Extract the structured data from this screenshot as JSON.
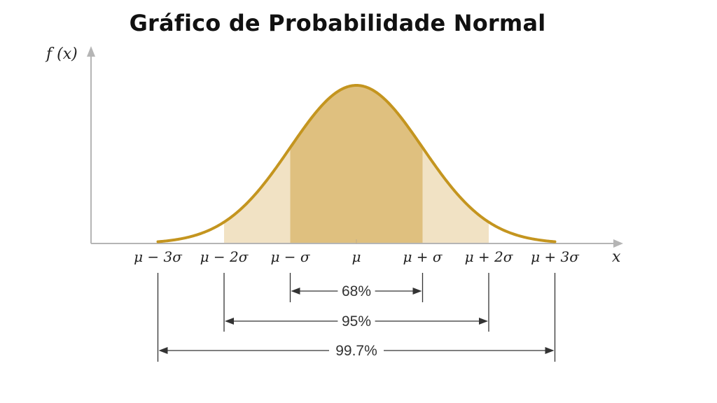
{
  "title": "Gráfico de Probabilidade Normal",
  "chart_data": {
    "type": "area",
    "distribution": "normal",
    "ylabel": "f (x)",
    "xlabel": "x",
    "x_ticks": [
      {
        "z": -3,
        "label": "μ − 3σ"
      },
      {
        "z": -2,
        "label": "μ − 2σ"
      },
      {
        "z": -1,
        "label": "μ − σ"
      },
      {
        "z": 0,
        "label": "μ"
      },
      {
        "z": 1,
        "label": "μ + σ"
      },
      {
        "z": 2,
        "label": "μ + 2σ"
      },
      {
        "z": 3,
        "label": "μ + 3σ"
      }
    ],
    "xlim": [
      -3,
      3
    ],
    "intervals": [
      {
        "from": -1,
        "to": 1,
        "label": "68%"
      },
      {
        "from": -2,
        "to": 2,
        "label": "95%"
      },
      {
        "from": -3,
        "to": 3,
        "label": "99.7%"
      }
    ],
    "shaded_regions": [
      {
        "from": -2,
        "to": 2,
        "color": "#f1e2c4"
      },
      {
        "from": -1,
        "to": 1,
        "color": "#dfc07f"
      }
    ],
    "colors": {
      "curve": "#c4951f",
      "axis": "#b5b5b5",
      "bracket_line": "#333333"
    }
  }
}
